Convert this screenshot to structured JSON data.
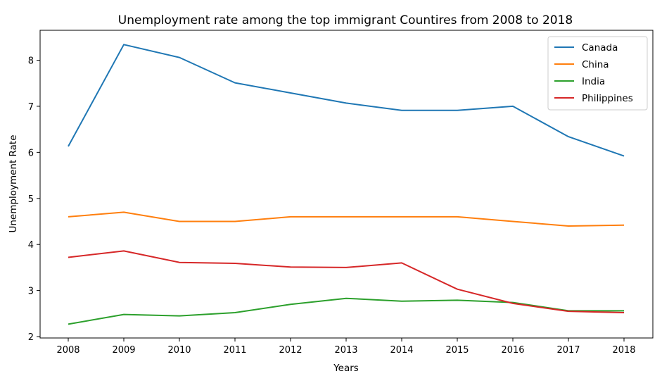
{
  "chart_data": {
    "type": "line",
    "title": "Unemployment rate among the top immigrant Countires from 2008 to 2018",
    "xlabel": "Years",
    "ylabel": "Unemployment Rate",
    "x": [
      2008,
      2009,
      2010,
      2011,
      2012,
      2013,
      2014,
      2015,
      2016,
      2017,
      2018
    ],
    "ylim": [
      1.97,
      8.65
    ],
    "yticks": [
      2,
      3,
      4,
      5,
      6,
      7,
      8
    ],
    "grid": false,
    "legend_position": "top-right",
    "series": [
      {
        "name": "Canada",
        "color": "#1f77b4",
        "values": [
          6.13,
          8.34,
          8.06,
          7.51,
          7.29,
          7.07,
          6.91,
          6.91,
          7.0,
          6.34,
          5.92
        ]
      },
      {
        "name": "China",
        "color": "#ff7f0e",
        "values": [
          4.6,
          4.7,
          4.5,
          4.5,
          4.6,
          4.6,
          4.6,
          4.6,
          4.5,
          4.4,
          4.42
        ]
      },
      {
        "name": "India",
        "color": "#2ca02c",
        "values": [
          2.27,
          2.48,
          2.45,
          2.52,
          2.7,
          2.83,
          2.77,
          2.79,
          2.74,
          2.56,
          2.56
        ]
      },
      {
        "name": "Philippines",
        "color": "#d62728",
        "values": [
          3.72,
          3.86,
          3.61,
          3.59,
          3.51,
          3.5,
          3.6,
          3.03,
          2.72,
          2.55,
          2.52
        ]
      }
    ]
  }
}
